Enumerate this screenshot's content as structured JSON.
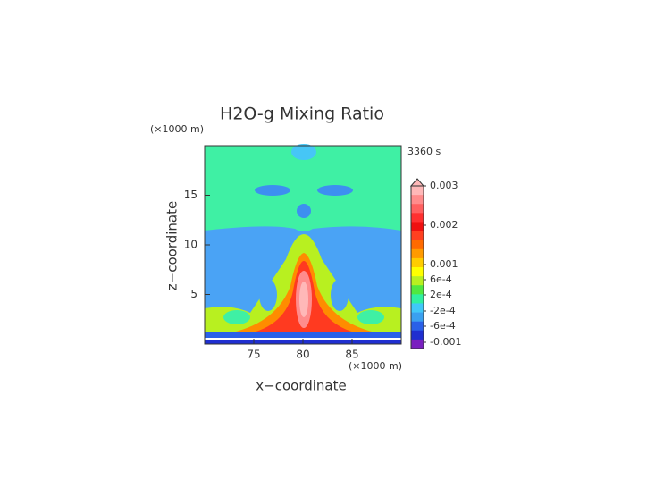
{
  "chart_data": {
    "type": "contour",
    "title": "H2O-g Mixing Ratio",
    "time_label": "3360 s",
    "xlabel": "x−coordinate",
    "ylabel": "z−coordinate",
    "x_unit": "(×1000 m)",
    "y_unit": "(×1000 m)",
    "xlim": [
      70,
      90
    ],
    "xticks": [
      75,
      80,
      85
    ],
    "ylim": [
      0,
      20
    ],
    "yticks": [
      5,
      10,
      15
    ],
    "colorbar_ticks": [
      0.003,
      0.002,
      0.001,
      {
        "value": 0.0006,
        "label": "6e-4"
      },
      {
        "value": 0.0002,
        "label": "2e-4"
      },
      {
        "value": -0.0002,
        "label": "-2e-4"
      },
      {
        "value": -0.0006,
        "label": "-6e-4"
      },
      -0.001
    ],
    "colorbar_colors": [
      "#ffb8b8",
      "#ff8c8c",
      "#ff6060",
      "#ff3030",
      "#f01010",
      "#ff4020",
      "#ff6a00",
      "#ff9a00",
      "#ffcc00",
      "#ffff00",
      "#b8f020",
      "#50e840",
      "#30f0a0",
      "#40c8f8",
      "#3aa0f0",
      "#2a60e8",
      "#1f2fd0",
      "#7a20c0"
    ]
  }
}
